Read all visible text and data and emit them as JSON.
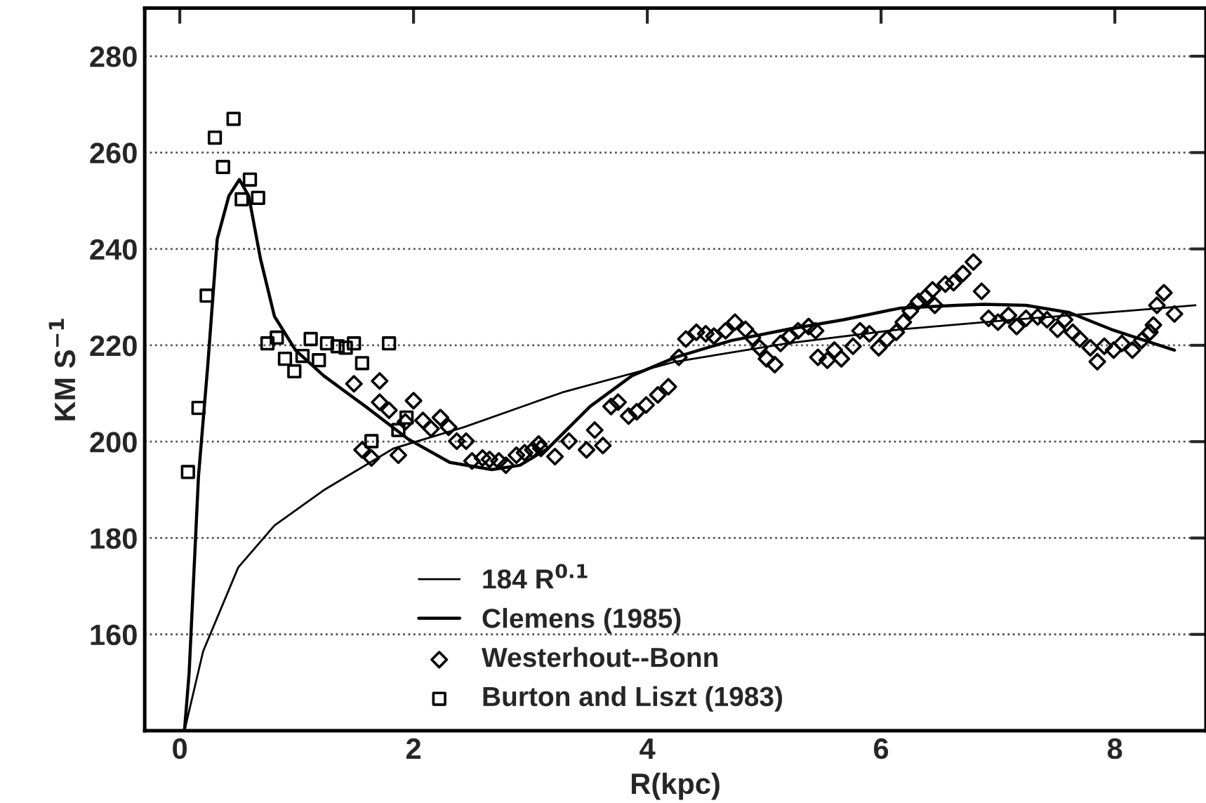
{
  "chart_data": {
    "type": "scatter",
    "xlabel": "R(kpc)",
    "ylabel": "KM S$^{−1}$",
    "xlim": [
      -0.3,
      8.78
    ],
    "ylim": [
      140,
      290
    ],
    "xticks": [
      0,
      2,
      4,
      6,
      8
    ],
    "yticks": [
      160,
      180,
      200,
      220,
      240,
      260,
      280
    ],
    "grid": "y",
    "legend": "bottom",
    "series": [
      {
        "name": "184 R$^{0.1}$",
        "type": "line",
        "marker": "none",
        "color": "#000000",
        "x": [
          0.04,
          0.2,
          0.5,
          0.81,
          1.23,
          1.83,
          2.43,
          3.27,
          4.24,
          5.2,
          6.16,
          7.12,
          8.09,
          8.69
        ],
        "values": [
          140,
          156.5,
          173.9,
          182.6,
          189.9,
          198.6,
          203,
          210.2,
          216.6,
          220.4,
          223.3,
          225.3,
          227.1,
          228.3
        ]
      },
      {
        "name": "Clemens (1985)",
        "type": "line",
        "marker": "none",
        "color": "#000000",
        "x": [
          0.04,
          0.08,
          0.16,
          0.24,
          0.32,
          0.42,
          0.51,
          0.59,
          0.69,
          0.81,
          0.99,
          1.23,
          1.59,
          1.95,
          2.31,
          2.67,
          2.91,
          3.15,
          3.51,
          3.87,
          4.24,
          4.72,
          5.2,
          5.68,
          6.16,
          6.64,
          6.88,
          7.24,
          7.61,
          7.97,
          8.33,
          8.51
        ],
        "values": [
          140,
          152,
          192.8,
          216,
          242,
          251,
          254.4,
          251,
          238,
          226,
          219,
          213.7,
          207.3,
          200.6,
          195.7,
          194.2,
          195.1,
          198.6,
          207.3,
          213.7,
          217.5,
          221,
          223.3,
          225.3,
          227.7,
          228.3,
          228.5,
          228.3,
          226.8,
          223.3,
          220.4,
          219
        ]
      },
      {
        "name": "Westerhout--Bonn",
        "marker": "diamond",
        "color": "#000000",
        "x": [
          1.49,
          1.71,
          2.0,
          1.71,
          1.79,
          1.56,
          1.64,
          1.87,
          1.93,
          2.08,
          2.15,
          2.23,
          2.3,
          2.37,
          2.45,
          2.5,
          2.59,
          2.65,
          2.73,
          2.79,
          2.88,
          2.95,
          3.02,
          3.07,
          3.09,
          3.21,
          3.33,
          3.48,
          3.55,
          3.62,
          3.69,
          3.75,
          3.84,
          3.91,
          3.99,
          4.09,
          4.18,
          4.27,
          4.33,
          4.42,
          4.5,
          4.57,
          4.67,
          4.75,
          4.84,
          4.9,
          4.96,
          5.02,
          5.09,
          5.14,
          5.22,
          5.29,
          5.38,
          5.44,
          5.46,
          5.54,
          5.6,
          5.66,
          5.76,
          5.82,
          5.9,
          5.98,
          6.05,
          6.13,
          6.19,
          6.25,
          6.32,
          6.38,
          6.46,
          6.44,
          6.55,
          6.62,
          6.7,
          6.79,
          6.86,
          6.92,
          7.0,
          7.09,
          7.16,
          7.24,
          7.34,
          7.42,
          7.51,
          7.57,
          7.64,
          7.7,
          7.79,
          7.85,
          7.91,
          7.99,
          8.06,
          8.15,
          8.23,
          8.3,
          8.33,
          8.36,
          8.42,
          8.51
        ],
        "values": [
          212,
          212.6,
          208.5,
          208.2,
          206.5,
          198.3,
          196.6,
          197.2,
          204.1,
          204.4,
          202.7,
          205,
          203,
          200.1,
          200.1,
          196,
          196.6,
          196.3,
          196,
          195.1,
          197.2,
          197.7,
          198.3,
          199.5,
          198.6,
          196.9,
          200.1,
          198.3,
          202.4,
          199.2,
          207.3,
          208.2,
          205.3,
          206.2,
          207.6,
          209.7,
          211.4,
          217.5,
          221.3,
          222.7,
          222.4,
          221.9,
          223,
          224.8,
          223.3,
          221.6,
          219.5,
          217.2,
          216,
          220.4,
          221.9,
          223,
          223.9,
          223,
          217.5,
          216.9,
          219,
          217.2,
          219.8,
          223,
          222.4,
          219.5,
          221.3,
          222.7,
          224.8,
          227.1,
          229.1,
          230,
          228.3,
          231.5,
          232.7,
          233,
          234.9,
          237.3,
          231.2,
          225.6,
          224.8,
          226.2,
          223.9,
          225.6,
          225.9,
          225.3,
          223.3,
          225.3,
          222.7,
          221.3,
          219.5,
          216.6,
          219.8,
          219,
          220.4,
          219,
          221,
          222.7,
          224.2,
          228.3,
          230.9,
          226.5
        ]
      },
      {
        "name": "Burton and Liszt (1983)",
        "marker": "square",
        "color": "#000000",
        "x": [
          0.07,
          0.16,
          0.23,
          0.3,
          0.37,
          0.46,
          0.53,
          0.6,
          0.67,
          0.75,
          0.83,
          0.9,
          0.98,
          1.05,
          1.12,
          1.19,
          1.26,
          1.35,
          1.42,
          1.49,
          1.56,
          1.79,
          1.64,
          1.87,
          1.94
        ],
        "values": [
          193.7,
          207,
          230.3,
          263.1,
          257,
          267,
          250.3,
          254.4,
          250.6,
          220.4,
          221.6,
          217.2,
          214.6,
          217.8,
          221.3,
          216.9,
          220.4,
          219.8,
          219.5,
          220.4,
          216.3,
          220.4,
          200.1,
          202.4,
          205
        ]
      }
    ]
  }
}
